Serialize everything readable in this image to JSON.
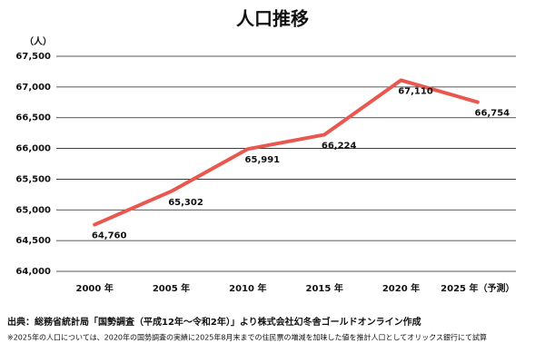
{
  "chart_data": {
    "type": "line",
    "title": "人口推移",
    "y_label": "（人）",
    "categories": [
      "2000 年",
      "2005 年",
      "2010 年",
      "2015 年",
      "2020 年",
      "2025 年（予測）"
    ],
    "series": [
      {
        "name": "人口",
        "color": "#e8584f",
        "values": [
          64760,
          65302,
          65991,
          66224,
          67110,
          66754
        ],
        "value_labels": [
          "64,760",
          "65,302",
          "65,991",
          "66,224",
          "67,110",
          "66,754"
        ]
      }
    ],
    "ylim": [
      64000,
      67500
    ],
    "yticks": [
      {
        "value": 64000,
        "label": "64,000"
      },
      {
        "value": 64500,
        "label": "64,500"
      },
      {
        "value": 65000,
        "label": "65,000"
      },
      {
        "value": 65500,
        "label": "65,500"
      },
      {
        "value": 66000,
        "label": "66,000"
      },
      {
        "value": 66500,
        "label": "66,500"
      },
      {
        "value": 67000,
        "label": "67,000"
      },
      {
        "value": 67500,
        "label": "67,500"
      }
    ],
    "grid": true,
    "source": "出典：総務省統計局「国勢調査（平成12年～令和2年）」より株式会社幻冬舎ゴールドオンライン作成",
    "note": "※2025年の人口については、2020年の国勢調査の実績に2025年8月末までの住民票の増減を加味した値を推計人口としてオリックス銀行にて試算"
  }
}
